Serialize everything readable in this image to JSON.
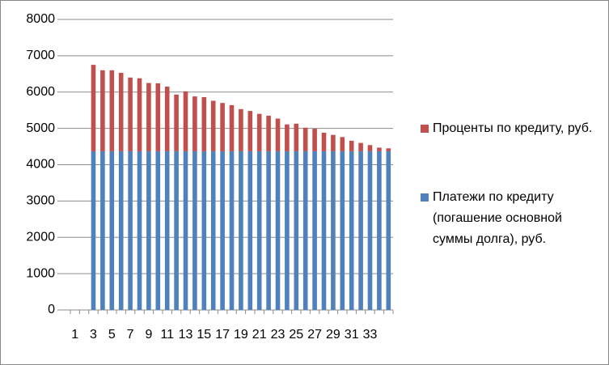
{
  "chart_data": {
    "type": "stacked_bar",
    "categories": [
      "1",
      null,
      "3",
      null,
      "5",
      null,
      "7",
      null,
      "9",
      null,
      "11",
      null,
      "13",
      null,
      "15",
      null,
      "17",
      null,
      "19",
      null,
      "21",
      null,
      "23",
      null,
      "25",
      null,
      "27",
      null,
      "29",
      null,
      "31",
      null,
      "33",
      null,
      null
    ],
    "series": [
      {
        "name": "Платежи по кредиту (погашение основной суммы долга), руб.",
        "color": "#4f81bd",
        "values": [
          null,
          null,
          4370,
          4370,
          4370,
          4370,
          4370,
          4370,
          4370,
          4370,
          4370,
          4370,
          4370,
          4370,
          4370,
          4370,
          4370,
          4370,
          4370,
          4370,
          4370,
          4370,
          4370,
          4370,
          4370,
          4370,
          4370,
          4370,
          4370,
          4370,
          4370,
          4370,
          4370,
          4370,
          4370
        ]
      },
      {
        "name": "Проценты по кредиту, руб.",
        "color": "#c0504d",
        "values": [
          null,
          null,
          2380,
          2230,
          2230,
          2160,
          2030,
          2010,
          1880,
          1870,
          1780,
          1560,
          1650,
          1510,
          1490,
          1390,
          1330,
          1270,
          1160,
          1110,
          1030,
          980,
          900,
          740,
          760,
          650,
          620,
          510,
          450,
          390,
          290,
          230,
          170,
          100,
          80
        ]
      }
    ],
    "ylim": [
      0,
      8000
    ],
    "yticks": [
      0,
      1000,
      2000,
      3000,
      4000,
      5000,
      6000,
      7000,
      8000
    ],
    "grid": true,
    "legend": "right"
  }
}
